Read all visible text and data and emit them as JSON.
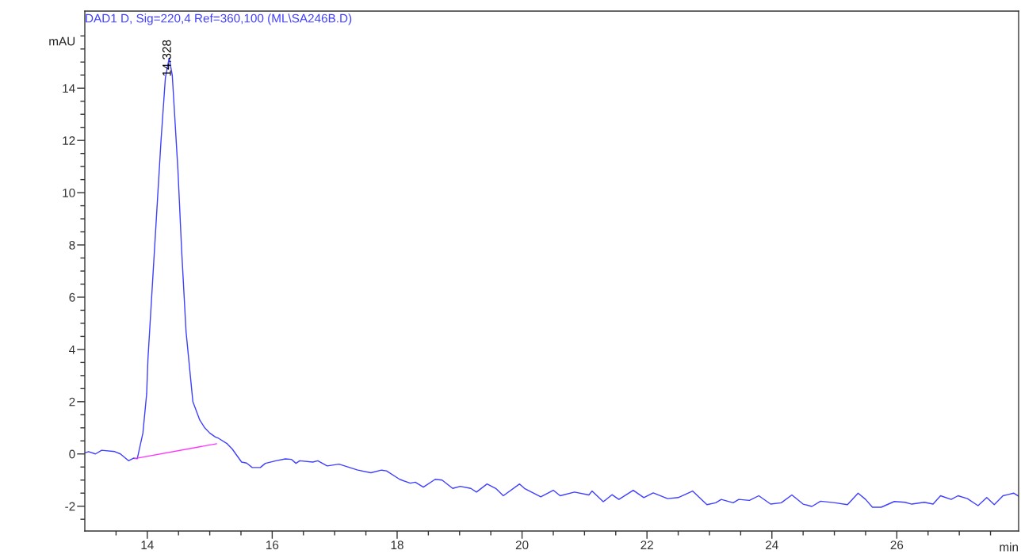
{
  "chart_data": {
    "type": "line",
    "title": "DAD1 D, Sig=220,4 Ref=360,100 (ML\\SA246B.D)",
    "xlabel": "min",
    "ylabel": "mAU",
    "xlim": [
      13,
      27.95
    ],
    "ylim": [
      -2.95,
      16.95
    ],
    "xticks": [
      {
        "value": 13.5,
        "label": null
      },
      14,
      {
        "value": 14.5,
        "label": null
      },
      {
        "value": 15,
        "label": null
      },
      {
        "value": 15.5,
        "label": null
      },
      16,
      {
        "value": 16.5,
        "label": null
      },
      {
        "value": 17,
        "label": null
      },
      {
        "value": 17.5,
        "label": null
      },
      18,
      {
        "value": 18.5,
        "label": null
      },
      {
        "value": 19,
        "label": null
      },
      {
        "value": 19.5,
        "label": null
      },
      20,
      {
        "value": 20.5,
        "label": null
      },
      {
        "value": 21,
        "label": null
      },
      {
        "value": 21.5,
        "label": null
      },
      22,
      {
        "value": 22.5,
        "label": null
      },
      {
        "value": 23,
        "label": null
      },
      {
        "value": 23.5,
        "label": null
      },
      24,
      {
        "value": 24.5,
        "label": null
      },
      {
        "value": 25,
        "label": null
      },
      {
        "value": 25.5,
        "label": null
      },
      26,
      {
        "value": 26.5,
        "label": null
      },
      {
        "value": 27,
        "label": null
      },
      {
        "value": 27.5,
        "label": null
      }
    ],
    "yticks": [
      {
        "value": -2.5,
        "label": null
      },
      -2,
      {
        "value": -1.5,
        "label": null
      },
      {
        "value": -1,
        "label": null
      },
      {
        "value": -0.5,
        "label": null
      },
      0,
      {
        "value": 0.5,
        "label": null
      },
      {
        "value": 1,
        "label": null
      },
      {
        "value": 1.5,
        "label": null
      },
      2,
      {
        "value": 2.5,
        "label": null
      },
      {
        "value": 3,
        "label": null
      },
      {
        "value": 3.5,
        "label": null
      },
      4,
      {
        "value": 4.5,
        "label": null
      },
      {
        "value": 5,
        "label": null
      },
      {
        "value": 5.5,
        "label": null
      },
      6,
      {
        "value": 6.5,
        "label": null
      },
      {
        "value": 7,
        "label": null
      },
      {
        "value": 7.5,
        "label": null
      },
      8,
      {
        "value": 8.5,
        "label": null
      },
      {
        "value": 9,
        "label": null
      },
      {
        "value": 9.5,
        "label": null
      },
      10,
      {
        "value": 10.5,
        "label": null
      },
      {
        "value": 11,
        "label": null
      },
      {
        "value": 11.5,
        "label": null
      },
      12,
      {
        "value": 12.5,
        "label": null
      },
      {
        "value": 13,
        "label": null
      },
      {
        "value": 13.5,
        "label": null
      },
      14,
      {
        "value": 14.5,
        "label": null
      },
      {
        "value": 15,
        "label": null
      },
      {
        "value": 15.5,
        "label": null
      },
      {
        "value": 16,
        "label": null
      }
    ],
    "grid": false,
    "legend": false,
    "annotations": [
      {
        "text": "14.328",
        "x": 14.328,
        "y": 15.15
      }
    ],
    "series": [
      {
        "color": "#3f3fff",
        "x": [
          13.0,
          13.06,
          13.17,
          13.27,
          13.48,
          13.57,
          13.7,
          13.78,
          13.84,
          13.93,
          13.99,
          14.01,
          14.14,
          14.22,
          14.29,
          14.35,
          14.4,
          14.49,
          14.55,
          14.62,
          14.73,
          14.84,
          14.92,
          15.0,
          15.09,
          15.14,
          15.28,
          15.36,
          15.51,
          15.59,
          15.68,
          15.81,
          15.89,
          16.06,
          16.21,
          16.31,
          16.38,
          16.44,
          16.65,
          16.73,
          16.88,
          17.07,
          17.37,
          17.58,
          17.75,
          17.83,
          18.04,
          18.21,
          18.29,
          18.42,
          18.61,
          18.72,
          18.89,
          19.01,
          19.18,
          19.27,
          19.44,
          19.58,
          19.7,
          19.96,
          20.04,
          20.3,
          20.5,
          20.61,
          20.84,
          21.07,
          21.12,
          21.3,
          21.44,
          21.55,
          21.78,
          21.95,
          22.1,
          22.33,
          22.5,
          22.73,
          22.96,
          23.1,
          23.19,
          23.38,
          23.47,
          23.64,
          23.79,
          23.98,
          24.15,
          24.32,
          24.5,
          24.64,
          24.78,
          25.01,
          25.21,
          25.38,
          25.5,
          25.61,
          25.75,
          25.96,
          26.13,
          26.24,
          26.44,
          26.58,
          26.7,
          26.87,
          26.98,
          27.13,
          27.3,
          27.44,
          27.56,
          27.7,
          27.87,
          27.95
        ],
        "values": [
          0.04,
          0.09,
          0.0,
          0.14,
          0.09,
          0.0,
          -0.26,
          -0.16,
          -0.18,
          0.8,
          2.3,
          3.6,
          8.8,
          12.0,
          14.4,
          15.15,
          14.5,
          10.9,
          7.8,
          4.7,
          2.0,
          1.3,
          1.0,
          0.8,
          0.65,
          0.6,
          0.39,
          0.19,
          -0.31,
          -0.35,
          -0.52,
          -0.52,
          -0.36,
          -0.26,
          -0.19,
          -0.21,
          -0.36,
          -0.26,
          -0.31,
          -0.26,
          -0.46,
          -0.39,
          -0.62,
          -0.72,
          -0.62,
          -0.65,
          -0.97,
          -1.12,
          -1.08,
          -1.27,
          -0.97,
          -1.0,
          -1.32,
          -1.24,
          -1.32,
          -1.46,
          -1.15,
          -1.32,
          -1.6,
          -1.15,
          -1.32,
          -1.64,
          -1.39,
          -1.6,
          -1.46,
          -1.57,
          -1.42,
          -1.83,
          -1.56,
          -1.74,
          -1.39,
          -1.67,
          -1.49,
          -1.71,
          -1.67,
          -1.42,
          -1.94,
          -1.87,
          -1.74,
          -1.87,
          -1.74,
          -1.78,
          -1.6,
          -1.92,
          -1.87,
          -1.57,
          -1.92,
          -2.01,
          -1.81,
          -1.87,
          -1.94,
          -1.5,
          -1.74,
          -2.04,
          -2.04,
          -1.82,
          -1.85,
          -1.92,
          -1.85,
          -1.92,
          -1.6,
          -1.74,
          -1.6,
          -1.71,
          -1.98,
          -1.67,
          -1.94,
          -1.6,
          -1.5,
          -1.62
        ]
      },
      {
        "color": "#ff33ff",
        "x": [
          13.8,
          15.11
        ],
        "values": [
          -0.18,
          0.39
        ]
      }
    ]
  }
}
